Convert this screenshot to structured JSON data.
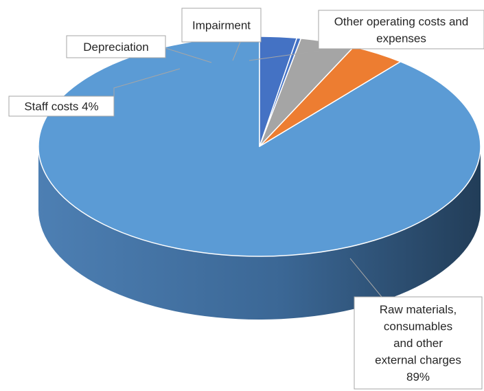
{
  "chart_data": {
    "type": "pie",
    "style": "3d",
    "slices": [
      {
        "label": "Raw materials, consumables and other external charges",
        "value": 89,
        "label_lines": [
          "Raw materials,",
          "consumables",
          "and other",
          "external charges",
          "89%"
        ],
        "color": "#5b9bd5",
        "side_color": "#3a6d9d"
      },
      {
        "label": "Staff costs",
        "value": 4,
        "label_lines": [
          "Staff costs 4%"
        ],
        "color": "#ed7d31",
        "side_color": "#b35e22"
      },
      {
        "label": "Depreciation",
        "value": 4,
        "label_lines": [
          "Depreciation"
        ],
        "color": "#a5a5a5",
        "side_color": "#7c7c7c"
      },
      {
        "label": "Impairment",
        "value": 0.3,
        "label_lines": [
          "Impairment"
        ],
        "color": "#4472c4",
        "side_color": "#2f5597"
      },
      {
        "label": "Other operating costs and expenses",
        "value": 2.7,
        "label_lines": [
          "Other operating costs and",
          "expenses"
        ],
        "color": "#4472c4",
        "side_color": "#2f5597"
      }
    ],
    "legend": "none"
  }
}
